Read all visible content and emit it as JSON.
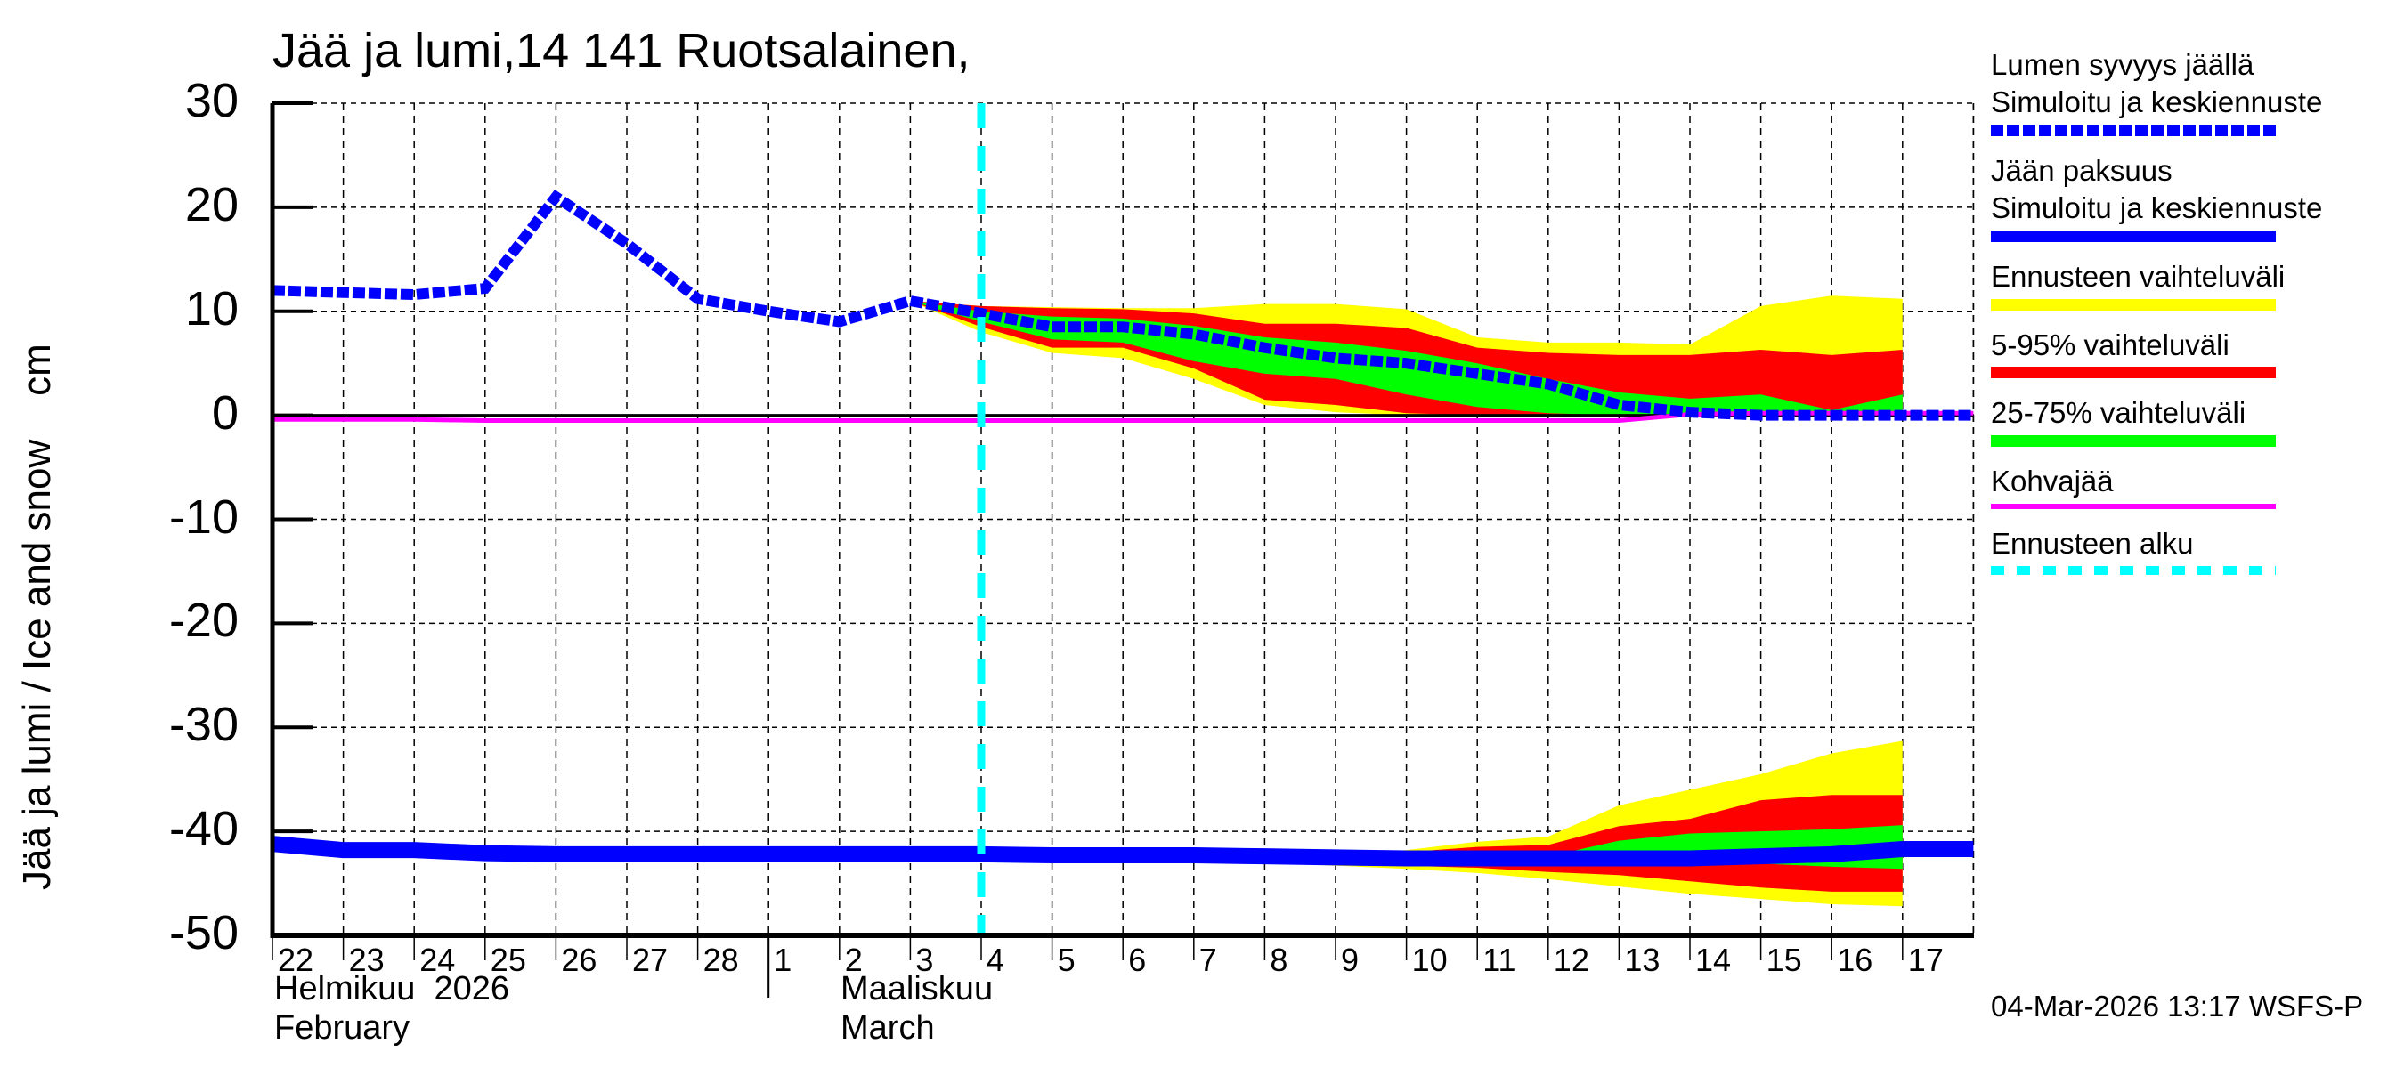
{
  "title": "Jää ja lumi,14 141 Ruotsalainen,",
  "y_axis_label": "Jää ja lumi / Ice and snow    cm",
  "timestamp": "04-Mar-2026 13:17 WSFS-P",
  "months": {
    "feb": {
      "fi": "Helmikuu  2026",
      "en": "February"
    },
    "mar": {
      "fi": "Maaliskuu",
      "en": "March"
    }
  },
  "colors": {
    "snow": "#0000ff",
    "ice": "#0000ff",
    "range_full": "#ffff00",
    "range_5_95": "#ff0000",
    "range_25_75": "#00ff00",
    "slush": "#ff00ff",
    "forecast_start": "#00ffff",
    "grid": "#000000"
  },
  "legend": [
    {
      "line1": "Lumen syvyys jäällä",
      "line2": "Simuloitu ja keskiennuste",
      "color": "#0000ff",
      "style": "dashed-thick"
    },
    {
      "line1": "Jään paksuus",
      "line2": "Simuloitu ja keskiennuste",
      "color": "#0000ff",
      "style": "solid-thick"
    },
    {
      "line1": "Ennusteen vaihteluväli",
      "line2": "",
      "color": "#ffff00",
      "style": "solid-thick"
    },
    {
      "line1": "5-95% vaihteluväli",
      "line2": "",
      "color": "#ff0000",
      "style": "solid-thick"
    },
    {
      "line1": "25-75% vaihteluväli",
      "line2": "",
      "color": "#00ff00",
      "style": "solid-thick"
    },
    {
      "line1": "Kohvajää",
      "line2": "",
      "color": "#ff00ff",
      "style": "solid-thin"
    },
    {
      "line1": "Ennusteen alku",
      "line2": "",
      "color": "#00ffff",
      "style": "dashed"
    }
  ],
  "chart_data": {
    "type": "line",
    "title": "Jää ja lumi,14 141 Ruotsalainen,",
    "xlabel": "",
    "ylabel": "Jää ja lumi / Ice and snow    cm",
    "ylim": [
      -50,
      30
    ],
    "yticks": [
      30,
      20,
      10,
      0,
      -10,
      -20,
      -30,
      -40,
      -50
    ],
    "grid": true,
    "legend_position": "right",
    "x_tick_labels": [
      "22",
      "23",
      "24",
      "25",
      "26",
      "27",
      "28",
      "1",
      "2",
      "3",
      "4",
      "5",
      "6",
      "7",
      "8",
      "9",
      "10",
      "11",
      "12",
      "13",
      "14",
      "15",
      "16",
      "17"
    ],
    "x_dates": [
      "2026-02-22",
      "2026-02-23",
      "2026-02-24",
      "2026-02-25",
      "2026-02-26",
      "2026-02-27",
      "2026-02-28",
      "2026-03-01",
      "2026-03-02",
      "2026-03-03",
      "2026-03-04",
      "2026-03-05",
      "2026-03-06",
      "2026-03-07",
      "2026-03-08",
      "2026-03-09",
      "2026-03-10",
      "2026-03-11",
      "2026-03-12",
      "2026-03-13",
      "2026-03-14",
      "2026-03-15",
      "2026-03-16",
      "2026-03-17",
      "2026-03-18"
    ],
    "forecast_start_index": 10,
    "series": [
      {
        "name": "Lumen syvyys jäällä (Simuloitu ja keskiennuste)",
        "values": [
          12,
          11.8,
          11.6,
          12.2,
          21,
          16.5,
          11.2,
          10,
          9,
          11,
          9.8,
          8.5,
          8.5,
          7.8,
          6.5,
          5.5,
          5,
          4,
          3,
          1,
          0.3,
          0,
          0,
          0,
          0
        ]
      },
      {
        "name": "Jään paksuus (Simuloitu ja keskiennuste)",
        "values": [
          -41.2,
          -41.8,
          -41.8,
          -42.1,
          -42.2,
          -42.2,
          -42.2,
          -42.2,
          -42.2,
          -42.2,
          -42.2,
          -42.3,
          -42.3,
          -42.3,
          -42.4,
          -42.5,
          -42.6,
          -42.6,
          -42.6,
          -42.6,
          -42.6,
          -42.4,
          -42.2,
          -41.7,
          -41.7
        ]
      },
      {
        "name": "Kohvajää",
        "values": [
          -0.4,
          -0.4,
          -0.4,
          -0.5,
          -0.5,
          -0.5,
          -0.5,
          -0.5,
          -0.5,
          -0.5,
          -0.5,
          -0.5,
          -0.5,
          -0.5,
          -0.5,
          -0.5,
          -0.5,
          -0.5,
          -0.5,
          -0.5,
          0.1,
          0.2,
          0.2,
          0.2,
          0.2
        ]
      }
    ],
    "bands": {
      "snow": {
        "x_start_index": 9,
        "full_range": {
          "upper": [
            11,
            10.5,
            10.4,
            10.3,
            10.3,
            10.7,
            10.7,
            10.2,
            7.5,
            7,
            7,
            6.8,
            10.5,
            11.5,
            11.2
          ],
          "lower": [
            11,
            8,
            6,
            5.5,
            3.5,
            1,
            0.3,
            0,
            0,
            0,
            0,
            0,
            0,
            0,
            0
          ]
        },
        "p5_95": {
          "upper": [
            11,
            10.5,
            10.3,
            10.2,
            9.8,
            8.8,
            8.8,
            8.4,
            6.5,
            6,
            5.8,
            5.8,
            6.3,
            5.8,
            6.3
          ],
          "lower": [
            11,
            8.5,
            6.5,
            6.5,
            4.5,
            1.5,
            1,
            0.2,
            0,
            0,
            0,
            0,
            0,
            0,
            0
          ]
        },
        "p25_75": {
          "upper": [
            11,
            10,
            9.5,
            9.3,
            8.6,
            7.5,
            7,
            6.2,
            5,
            3.5,
            2.2,
            1.6,
            2,
            0.5,
            2
          ],
          "lower": [
            11,
            9,
            7.3,
            7,
            5.2,
            4,
            3.5,
            2,
            0.8,
            0.2,
            0,
            0,
            0,
            0,
            0.3
          ]
        }
      },
      "ice": {
        "x_start_index": 13,
        "full_range": {
          "upper": [
            -42.2,
            -42.2,
            -42.2,
            -41.8,
            -41,
            -40.5,
            -37.5,
            -36,
            -34.5,
            -32.5,
            -31.3
          ],
          "lower": [
            -42.4,
            -43,
            -43.3,
            -43.6,
            -44,
            -44.6,
            -45.3,
            -46,
            -46.5,
            -47,
            -47.2
          ]
        },
        "p5_95": {
          "upper": [
            -42.2,
            -42.2,
            -42.2,
            -42,
            -41.5,
            -41.3,
            -39.5,
            -38.8,
            -37,
            -36.5,
            -36.5
          ],
          "lower": [
            -42.4,
            -42.8,
            -43.2,
            -43.3,
            -43.5,
            -43.9,
            -44.2,
            -44.8,
            -45.4,
            -45.8,
            -45.8
          ]
        },
        "p25_75": {
          "upper": [
            -42.3,
            -42.4,
            -42.5,
            -42.5,
            -42.6,
            -42.4,
            -40.9,
            -40.2,
            -40,
            -39.8,
            -39.4
          ],
          "lower": [
            -42.3,
            -42.4,
            -42.6,
            -42.7,
            -42.8,
            -42.8,
            -42.9,
            -43,
            -43.1,
            -43.4,
            -43.6
          ]
        }
      }
    }
  }
}
